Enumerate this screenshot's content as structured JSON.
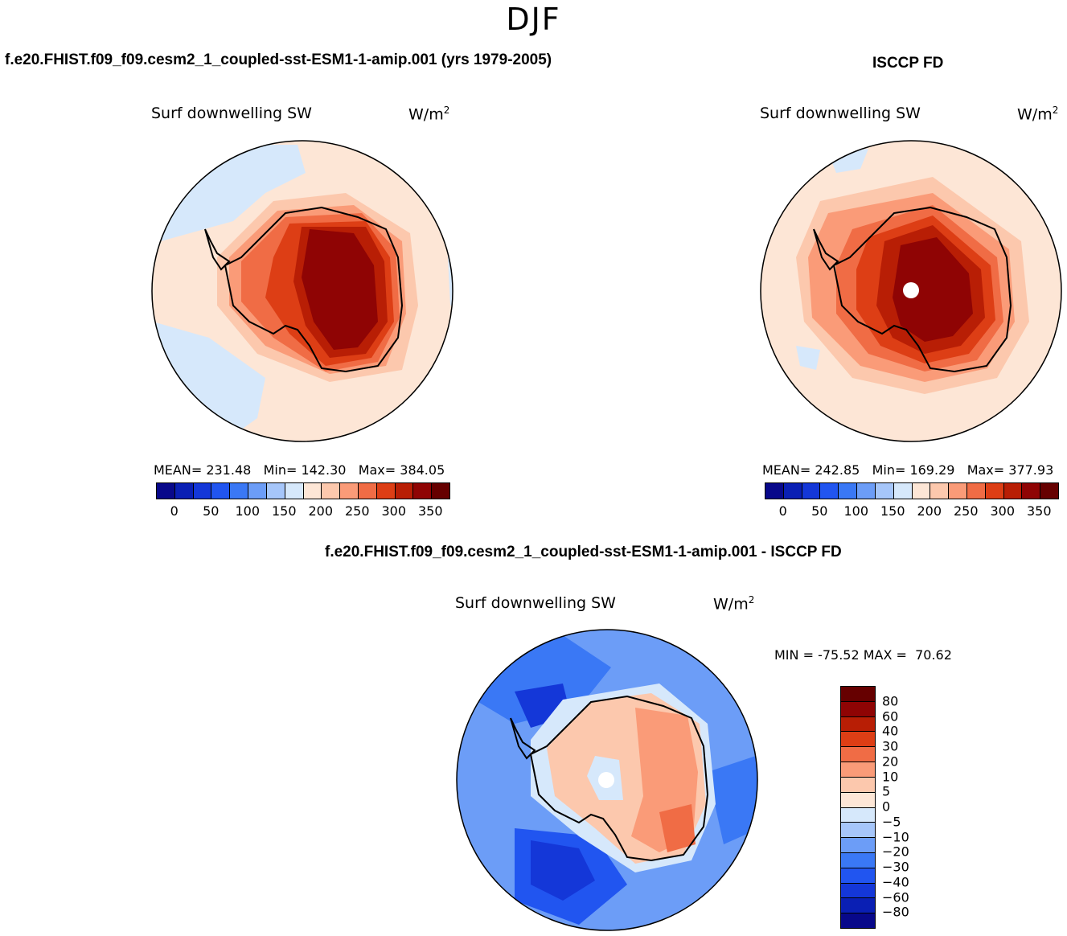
{
  "figure": {
    "season": "DJF",
    "diff_title": "f.e20.FHIST.f09_f09.cesm2_1_coupled-sst-ESM1-1-amip.001 - ISCCP FD"
  },
  "chart_data": [
    {
      "type": "heatmap",
      "projection": "south-polar-stereographic",
      "panel": "model",
      "case_title": "f.e20.FHIST.f09_f09.cesm2_1_coupled-sst-ESM1-1-amip.001 (yrs 1979-2005)",
      "variable": "Surf downwelling SW",
      "units_base": "W/m",
      "units_exp": "2",
      "stats_text": "MEAN= 231.48   Min= 142.30   Max= 384.05",
      "mean": 231.48,
      "min": 142.3,
      "max": 384.05,
      "colorbar": {
        "orientation": "horizontal",
        "levels": [
          0,
          25,
          50,
          75,
          100,
          125,
          150,
          175,
          200,
          225,
          250,
          275,
          300,
          325,
          350
        ],
        "tick_labels": [
          "0",
          "50",
          "100",
          "150",
          "200",
          "250",
          "300",
          "350"
        ],
        "colors": [
          "#08088a",
          "#0a1fb4",
          "#1437d8",
          "#2155f0",
          "#3a78f5",
          "#6c9df7",
          "#a6c6fa",
          "#d6e8fb",
          "#fde6d6",
          "#fcc8ad",
          "#fa9b78",
          "#f06c45",
          "#dd3e15",
          "#b81e05",
          "#8f0404",
          "#660000"
        ]
      }
    },
    {
      "type": "heatmap",
      "projection": "south-polar-stereographic",
      "panel": "obs",
      "case_title": "ISCCP FD",
      "variable": "Surf downwelling SW",
      "units_base": "W/m",
      "units_exp": "2",
      "stats_text": "MEAN= 242.85   Min= 169.29   Max= 377.93",
      "mean": 242.85,
      "min": 169.29,
      "max": 377.93,
      "colorbar": {
        "orientation": "horizontal",
        "levels": [
          0,
          25,
          50,
          75,
          100,
          125,
          150,
          175,
          200,
          225,
          250,
          275,
          300,
          325,
          350
        ],
        "tick_labels": [
          "0",
          "50",
          "100",
          "150",
          "200",
          "250",
          "300",
          "350"
        ],
        "colors": [
          "#08088a",
          "#0a1fb4",
          "#1437d8",
          "#2155f0",
          "#3a78f5",
          "#6c9df7",
          "#a6c6fa",
          "#d6e8fb",
          "#fde6d6",
          "#fcc8ad",
          "#fa9b78",
          "#f06c45",
          "#dd3e15",
          "#b81e05",
          "#8f0404",
          "#660000"
        ]
      }
    },
    {
      "type": "heatmap",
      "projection": "south-polar-stereographic",
      "panel": "difference",
      "variable": "Surf downwelling SW",
      "units_base": "W/m",
      "units_exp": "2",
      "stats_text": "MIN = -75.52 MAX =  70.62",
      "min": -75.52,
      "max": 70.62,
      "colorbar": {
        "orientation": "vertical",
        "levels": [
          -80,
          -60,
          -40,
          -30,
          -20,
          -10,
          -5,
          0,
          5,
          10,
          20,
          30,
          40,
          60,
          80
        ],
        "tick_labels": [
          "-80",
          "-60",
          "-40",
          "-30",
          "-20",
          "-10",
          "-5",
          "0",
          "5",
          "10",
          "20",
          "30",
          "40",
          "60",
          "80"
        ],
        "colors": [
          "#08088a",
          "#0a1fb4",
          "#1437d8",
          "#2155f0",
          "#3a78f5",
          "#6c9df7",
          "#a6c6fa",
          "#d6e8fb",
          "#fde6d6",
          "#fcc8ad",
          "#fa9b78",
          "#f06c45",
          "#dd3e15",
          "#b81e05",
          "#8f0404",
          "#660000"
        ]
      }
    }
  ]
}
